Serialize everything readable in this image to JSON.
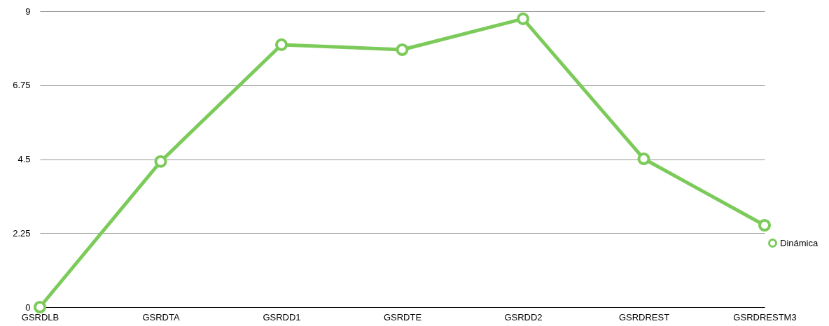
{
  "chart_data": {
    "type": "line",
    "categories": [
      "GSRDLB",
      "GSRDTA",
      "GSRDD1",
      "GSRDTE",
      "GSRDD2",
      "GSRDREST",
      "GSRDRESTM3"
    ],
    "series": [
      {
        "name": "Dinámica",
        "color": "#7ccb5a",
        "values": [
          0,
          4.43,
          7.98,
          7.83,
          8.77,
          4.51,
          2.49
        ]
      }
    ],
    "ylim": [
      0,
      9
    ],
    "yticks": [
      0,
      2.25,
      4.5,
      6.75,
      9
    ],
    "grid": "y",
    "legend": "right",
    "marker": "circle",
    "line_style": "solid"
  }
}
